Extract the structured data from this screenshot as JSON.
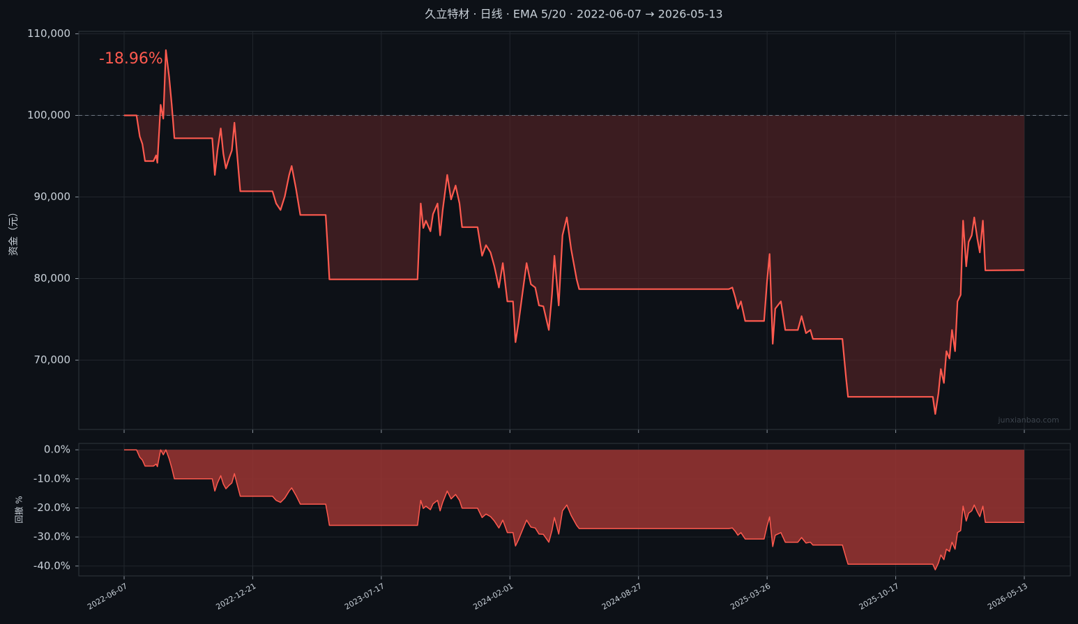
{
  "chart_data": [
    {
      "type": "line",
      "title": "久立特材 · 日线 · EMA 5/20 · 2022-06-07 → 2026-05-13",
      "y_label": "资金（元）",
      "annotation": "-18.96%",
      "watermark": "junxianbao.com",
      "color": "#ff5a4f",
      "fill_color": "#5a2426",
      "reference_line": 100000,
      "grid": true,
      "xlim": [
        "2022-03-29",
        "2026-07-27"
      ],
      "xticks": [
        "2022-06-07",
        "2022-12-21",
        "2023-07-17",
        "2024-02-01",
        "2024-08-27",
        "2025-03-26",
        "2025-10-17",
        "2026-05-13"
      ],
      "ylim": [
        61500,
        110300
      ],
      "yticks": [
        {
          "value": 70000,
          "label": "70,000"
        },
        {
          "value": 80000,
          "label": "80,000"
        },
        {
          "value": 90000,
          "label": "90,000"
        },
        {
          "value": 100000,
          "label": "100,000"
        },
        {
          "value": 110000,
          "label": "110,000"
        }
      ],
      "x": [
        "2022-06-07",
        "2022-06-26",
        "2022-07-01",
        "2022-07-05",
        "2022-07-09",
        "2022-07-22",
        "2022-07-26",
        "2022-07-28",
        "2022-08-02",
        "2022-08-06",
        "2022-08-10",
        "2022-08-15",
        "2022-08-19",
        "2022-08-23",
        "2022-10-20",
        "2022-10-24",
        "2022-10-28",
        "2022-11-02",
        "2022-11-06",
        "2022-11-10",
        "2022-11-15",
        "2022-11-19",
        "2022-11-23",
        "2022-11-27",
        "2022-12-02",
        "2023-01-22",
        "2023-01-28",
        "2023-02-04",
        "2023-02-11",
        "2023-02-18",
        "2023-02-22",
        "2023-03-01",
        "2023-03-08",
        "2023-04-18",
        "2023-04-22",
        "2023-04-24",
        "2023-09-11",
        "2023-09-16",
        "2023-09-20",
        "2023-09-24",
        "2023-10-01",
        "2023-10-05",
        "2023-10-12",
        "2023-10-16",
        "2023-10-20",
        "2023-10-27",
        "2023-11-02",
        "2023-11-09",
        "2023-11-15",
        "2023-11-19",
        "2023-12-13",
        "2023-12-20",
        "2023-12-26",
        "2024-01-02",
        "2024-01-08",
        "2024-01-15",
        "2024-01-21",
        "2024-01-28",
        "2024-02-06",
        "2024-02-10",
        "2024-02-15",
        "2024-02-21",
        "2024-02-28",
        "2024-03-06",
        "2024-03-13",
        "2024-03-19",
        "2024-03-26",
        "2024-04-04",
        "2024-04-09",
        "2024-04-13",
        "2024-04-20",
        "2024-04-26",
        "2024-05-03",
        "2024-05-10",
        "2024-05-19",
        "2024-05-23",
        "2025-01-22",
        "2025-01-28",
        "2025-02-02",
        "2025-02-06",
        "2025-02-11",
        "2025-02-18",
        "2025-03-21",
        "2025-03-26",
        "2025-03-30",
        "2025-04-04",
        "2025-04-08",
        "2025-04-17",
        "2025-04-24",
        "2025-05-14",
        "2025-05-20",
        "2025-05-27",
        "2025-06-03",
        "2025-06-07",
        "2025-07-24",
        "2025-07-30",
        "2025-08-02",
        "2025-12-16",
        "2025-12-20",
        "2025-12-25",
        "2025-12-29",
        "2026-01-03",
        "2026-01-07",
        "2026-01-12",
        "2026-01-16",
        "2026-01-21",
        "2026-01-25",
        "2026-01-30",
        "2026-02-03",
        "2026-02-08",
        "2026-02-12",
        "2026-02-17",
        "2026-02-21",
        "2026-02-26",
        "2026-03-02",
        "2026-03-07",
        "2026-03-11",
        "2026-05-13"
      ],
      "values": [
        100000,
        100000,
        97400,
        96500,
        94400,
        94400,
        95100,
        94200,
        101300,
        99600,
        108000,
        104700,
        101300,
        97200,
        97200,
        92700,
        95700,
        98400,
        95300,
        93500,
        94800,
        95700,
        99100,
        95300,
        90700,
        90700,
        89200,
        88400,
        90100,
        92700,
        93800,
        91000,
        87800,
        87800,
        82800,
        79900,
        79900,
        89200,
        86200,
        87100,
        85800,
        87900,
        89200,
        85300,
        88400,
        92700,
        89700,
        91400,
        89200,
        86300,
        86300,
        82800,
        84100,
        83200,
        81500,
        78900,
        81900,
        77200,
        77200,
        72200,
        74600,
        78000,
        81900,
        79300,
        78900,
        76700,
        76600,
        73700,
        78000,
        82800,
        76700,
        85300,
        87500,
        83600,
        79900,
        78700,
        78700,
        78900,
        77600,
        76300,
        77200,
        74800,
        74800,
        79700,
        83000,
        72000,
        76300,
        77200,
        73700,
        73700,
        75400,
        73300,
        73700,
        72600,
        72600,
        67700,
        65500,
        65500,
        63400,
        65900,
        68900,
        67200,
        71100,
        70200,
        73700,
        71100,
        77200,
        78000,
        87100,
        81500,
        84500,
        85300,
        87500,
        84900,
        83200,
        87100,
        81000,
        81040
      ]
    },
    {
      "type": "area",
      "y_label": "回撤 %",
      "color": "#ff5a4f",
      "fill_color": "#9b3533",
      "grid": true,
      "xlim": [
        "2022-03-29",
        "2026-07-27"
      ],
      "xticks": [
        "2022-06-07",
        "2022-12-21",
        "2023-07-17",
        "2024-02-01",
        "2024-08-27",
        "2025-03-26",
        "2025-10-17",
        "2026-05-13"
      ],
      "ylim": [
        -43.4,
        2.2
      ],
      "yticks": [
        {
          "value": -40,
          "label": "-40.0%"
        },
        {
          "value": -30,
          "label": "-30.0%"
        },
        {
          "value": -20,
          "label": "-20.0%"
        },
        {
          "value": -10,
          "label": "-10.0%"
        },
        {
          "value": 0,
          "label": "0.0%"
        }
      ],
      "x": [
        "2022-06-07",
        "2022-06-26",
        "2022-07-01",
        "2022-07-05",
        "2022-07-09",
        "2022-07-22",
        "2022-07-26",
        "2022-07-28",
        "2022-08-02",
        "2022-08-06",
        "2022-08-10",
        "2022-08-15",
        "2022-08-19",
        "2022-08-23",
        "2022-10-20",
        "2022-10-24",
        "2022-10-28",
        "2022-11-02",
        "2022-11-06",
        "2022-11-10",
        "2022-11-15",
        "2022-11-19",
        "2022-11-23",
        "2022-11-27",
        "2022-12-02",
        "2023-01-22",
        "2023-01-28",
        "2023-02-04",
        "2023-02-11",
        "2023-02-18",
        "2023-02-22",
        "2023-03-01",
        "2023-03-08",
        "2023-04-18",
        "2023-04-22",
        "2023-04-24",
        "2023-09-11",
        "2023-09-16",
        "2023-09-20",
        "2023-09-24",
        "2023-10-01",
        "2023-10-05",
        "2023-10-12",
        "2023-10-16",
        "2023-10-20",
        "2023-10-27",
        "2023-11-02",
        "2023-11-09",
        "2023-11-15",
        "2023-11-19",
        "2023-12-13",
        "2023-12-20",
        "2023-12-26",
        "2024-01-02",
        "2024-01-08",
        "2024-01-15",
        "2024-01-21",
        "2024-01-28",
        "2024-02-06",
        "2024-02-10",
        "2024-02-15",
        "2024-02-21",
        "2024-02-28",
        "2024-03-06",
        "2024-03-13",
        "2024-03-19",
        "2024-03-26",
        "2024-04-04",
        "2024-04-09",
        "2024-04-13",
        "2024-04-20",
        "2024-04-26",
        "2024-05-03",
        "2024-05-10",
        "2024-05-19",
        "2024-05-23",
        "2025-01-22",
        "2025-01-28",
        "2025-02-02",
        "2025-02-06",
        "2025-02-11",
        "2025-02-18",
        "2025-03-21",
        "2025-03-26",
        "2025-03-30",
        "2025-04-04",
        "2025-04-08",
        "2025-04-17",
        "2025-04-24",
        "2025-05-14",
        "2025-05-20",
        "2025-05-27",
        "2025-06-03",
        "2025-06-07",
        "2025-07-24",
        "2025-07-30",
        "2025-08-02",
        "2025-12-16",
        "2025-12-20",
        "2025-12-25",
        "2025-12-29",
        "2026-01-03",
        "2026-01-07",
        "2026-01-12",
        "2026-01-16",
        "2026-01-21",
        "2026-01-25",
        "2026-01-30",
        "2026-02-03",
        "2026-02-08",
        "2026-02-12",
        "2026-02-17",
        "2026-02-21",
        "2026-02-26",
        "2026-03-02",
        "2026-03-07",
        "2026-03-11",
        "2026-05-13"
      ],
      "values": [
        0,
        0,
        -2.6,
        -3.5,
        -5.6,
        -5.6,
        -4.9,
        -5.8,
        0,
        -1.7,
        0,
        -3.1,
        -6.2,
        -10.0,
        -10.0,
        -14.2,
        -11.4,
        -8.9,
        -11.8,
        -13.4,
        -12.2,
        -11.4,
        -8.2,
        -11.8,
        -16.0,
        -16.0,
        -17.4,
        -18.1,
        -16.6,
        -14.2,
        -13.1,
        -15.7,
        -18.7,
        -18.7,
        -23.3,
        -26.0,
        -26.0,
        -17.4,
        -20.2,
        -19.4,
        -20.6,
        -18.6,
        -17.4,
        -21.0,
        -18.1,
        -14.2,
        -16.9,
        -15.4,
        -17.4,
        -20.1,
        -20.1,
        -23.3,
        -22.1,
        -23.0,
        -24.5,
        -26.9,
        -24.2,
        -28.5,
        -28.5,
        -33.1,
        -30.9,
        -27.8,
        -24.2,
        -26.6,
        -26.9,
        -29.0,
        -29.1,
        -31.8,
        -27.8,
        -23.3,
        -29.0,
        -21.0,
        -19.0,
        -22.6,
        -26.0,
        -27.1,
        -27.1,
        -26.9,
        -28.1,
        -29.4,
        -28.5,
        -30.7,
        -30.7,
        -26.2,
        -23.1,
        -33.3,
        -29.4,
        -28.5,
        -31.8,
        -31.8,
        -30.2,
        -32.1,
        -31.8,
        -32.8,
        -32.8,
        -37.3,
        -39.4,
        -39.4,
        -41.3,
        -39.0,
        -36.2,
        -37.8,
        -34.2,
        -35.0,
        -31.8,
        -34.2,
        -28.5,
        -27.8,
        -19.4,
        -24.5,
        -21.8,
        -21.0,
        -19.0,
        -21.4,
        -23.0,
        -19.4,
        -25.0,
        -25.0
      ]
    }
  ]
}
